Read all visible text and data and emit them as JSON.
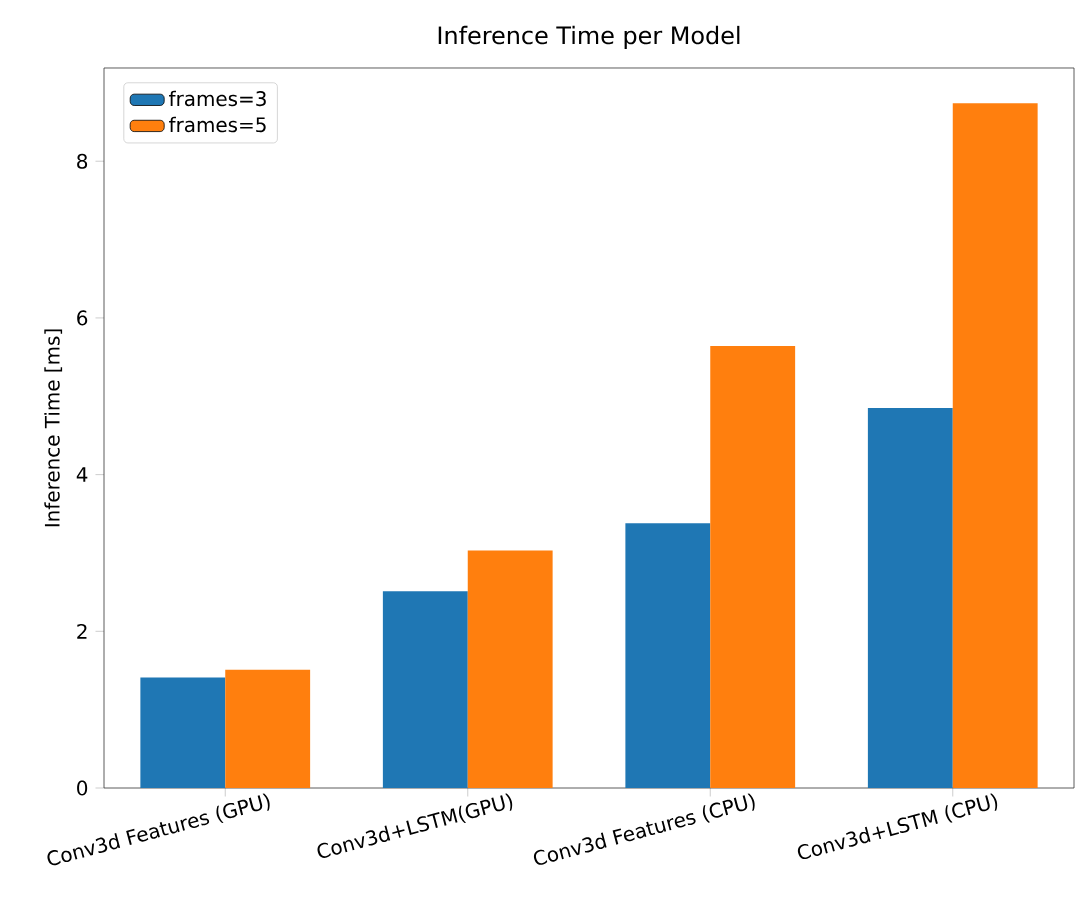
{
  "chart_data": {
    "type": "bar",
    "title": "Inference Time per Model",
    "ylabel": "Inference Time [ms]",
    "categories": [
      "Conv3d Features (GPU)",
      "Conv3d+LSTM(GPU)",
      "Conv3d Features (CPU)",
      "Conv3d+LSTM (CPU)"
    ],
    "series": [
      {
        "name": "frames=3",
        "color": "#1f77b4",
        "values": [
          1.41,
          2.51,
          3.38,
          4.85
        ]
      },
      {
        "name": "frames=5",
        "color": "#ff7f0e",
        "values": [
          1.51,
          3.03,
          5.64,
          8.74
        ]
      }
    ],
    "ylim": [
      0,
      9.19
    ],
    "yticks": [
      0,
      2,
      4,
      6,
      8
    ],
    "legend": "top left"
  }
}
